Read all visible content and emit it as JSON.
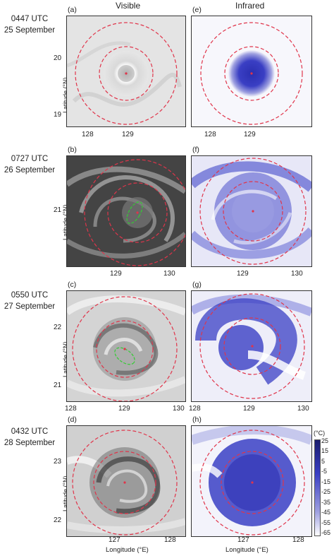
{
  "column_titles": {
    "visible": "Visible",
    "infrared": "Infrared"
  },
  "rows": [
    {
      "time": "0447 UTC",
      "date": "25 September",
      "vis_label": "(a)",
      "ir_label": "(e)",
      "yticks": [
        "20",
        "19"
      ],
      "xticks": [
        "128",
        "129"
      ]
    },
    {
      "time": "0727 UTC",
      "date": "26 September",
      "vis_label": "(b)",
      "ir_label": "(f)",
      "yticks": [
        "21"
      ],
      "xticks": [
        "129",
        "130"
      ]
    },
    {
      "time": "0550 UTC",
      "date": "27 September",
      "vis_label": "(c)",
      "ir_label": "(g)",
      "yticks": [
        "22",
        "21"
      ],
      "xticks": [
        "128",
        "129",
        "130"
      ]
    },
    {
      "time": "0432 UTC",
      "date": "28 September",
      "vis_label": "(d)",
      "ir_label": "(h)",
      "yticks": [
        "23",
        "22"
      ],
      "xticks": [
        "127",
        "128"
      ]
    }
  ],
  "axis_labels": {
    "latitude": "Latitude (°N)",
    "longitude": "Longitude (°E)"
  },
  "colorbar": {
    "unit": "(°C)",
    "ticks": [
      "25",
      "15",
      "5",
      "-5",
      "-15",
      "-25",
      "-35",
      "-45",
      "-55",
      "-65"
    ],
    "color_top": "#1a1d6e",
    "color_bottom": "#ffffff"
  },
  "colors": {
    "circle": "#e0344a",
    "eyewall_ellipse": "#33cc33",
    "ir_blue": "#3a3fc4"
  }
}
